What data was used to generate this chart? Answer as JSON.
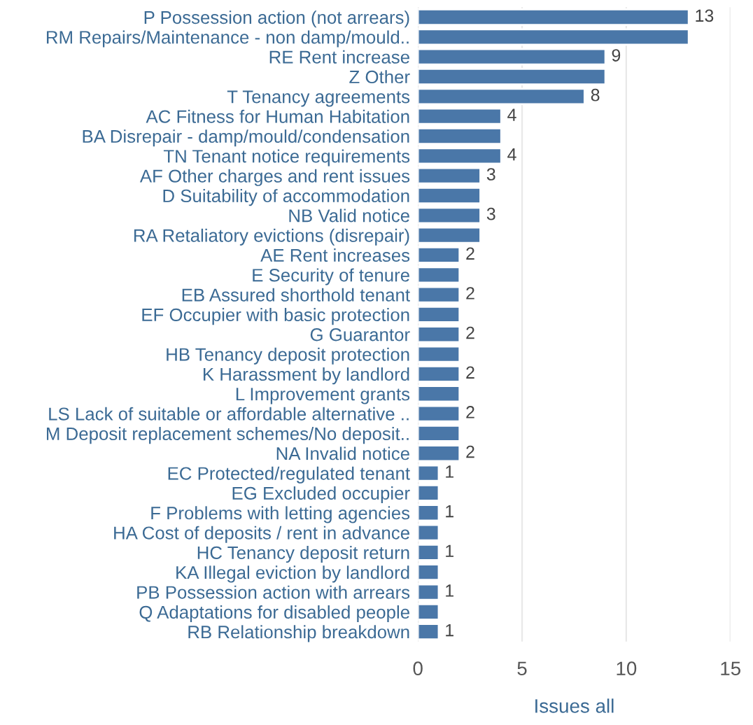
{
  "chart_data": {
    "type": "bar",
    "orientation": "horizontal",
    "xlabel": "Issues all",
    "categories": [
      "P Possession action (not arrears)",
      "RM Repairs/Maintenance - non damp/mould..",
      "RE Rent increase",
      "Z Other",
      "T Tenancy agreements",
      "AC Fitness for Human Habitation",
      "BA Disrepair - damp/mould/condensation",
      "TN Tenant notice requirements",
      "AF Other charges and rent issues",
      "D Suitability of accommodation",
      "NB Valid notice",
      "RA Retaliatory evictions (disrepair)",
      "AE Rent increases",
      "E Security of tenure",
      "EB Assured shorthold tenant",
      "EF Occupier with basic protection",
      "G Guarantor",
      "HB Tenancy deposit protection",
      "K Harassment by landlord",
      "L Improvement grants",
      "LS Lack of suitable or affordable alternative ..",
      "M Deposit replacement schemes/No deposit..",
      "NA Invalid notice",
      "EC Protected/regulated tenant",
      "EG Excluded occupier",
      "F Problems with letting agencies",
      "HA Cost of deposits / rent in advance",
      "HC Tenancy deposit return",
      "KA Illegal eviction by landlord",
      "PB Possession action with arrears",
      "Q Adaptations for disabled people",
      "RB Relationship breakdown"
    ],
    "values": [
      13,
      13,
      9,
      9,
      8,
      4,
      4,
      4,
      3,
      3,
      3,
      3,
      2,
      2,
      2,
      2,
      2,
      2,
      2,
      2,
      2,
      2,
      2,
      1,
      1,
      1,
      1,
      1,
      1,
      1,
      1,
      1
    ],
    "value_labels": [
      "13",
      null,
      "9",
      null,
      "8",
      "4",
      null,
      "4",
      "3",
      null,
      "3",
      null,
      "2",
      null,
      "2",
      null,
      "2",
      null,
      "2",
      null,
      "2",
      null,
      "2",
      "1",
      null,
      "1",
      null,
      "1",
      null,
      "1",
      null,
      "1"
    ],
    "color": "#4a77a8",
    "xlim": [
      0,
      15
    ],
    "xticks": [
      0,
      5,
      10,
      15
    ],
    "grid": "x"
  }
}
